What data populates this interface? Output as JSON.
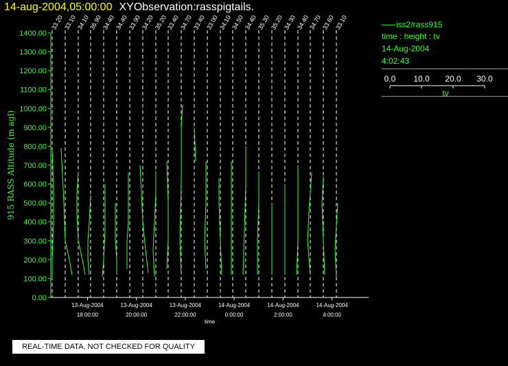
{
  "header": {
    "datetime": "14-aug-2004,05:00:00",
    "title": "XYObservation:rasspigtails."
  },
  "legend": {
    "series": "iss2/rass915",
    "variables": "time : height : tv",
    "date": "14-Aug-2004",
    "time": "4:02:43",
    "scale_ticks": [
      "0.0",
      "10.0",
      "20.0",
      "30.0"
    ],
    "scale_label": "tv"
  },
  "notice": "REAL-TIME DATA, NOT CHECKED FOR QUALITY",
  "chart_data": {
    "type": "line",
    "title": "",
    "ylabel": "915 RASS Altitude (m agl)",
    "xlabel": "time",
    "ylim": [
      0,
      1400
    ],
    "xlim_hours": [
      16.5,
      5.5
    ],
    "grid": false,
    "colors": {
      "data": "#33ff33",
      "axes": "#ffffff",
      "guides": "#ffffff",
      "title_date": "#ffff00"
    },
    "y_ticks": [
      "0.00",
      "100.00",
      "200.00",
      "300.00",
      "400.00",
      "500.00",
      "600.00",
      "700.00",
      "800.00",
      "900.00",
      "1000.00",
      "1100.00",
      "1200.00",
      "1300.00",
      "1400.00"
    ],
    "x_ticks": [
      {
        "date": "13-Aug-2004",
        "time": "18:00:00"
      },
      {
        "date": "13-Aug-2004",
        "time": "20:00:00"
      },
      {
        "date": "13-Aug-2004",
        "time": "22:00:00"
      },
      {
        "date": "14-Aug-2004",
        "time": "0:00:00"
      },
      {
        "date": "14-Aug-2004",
        "time": "2:00:00"
      },
      {
        "date": "14-Aug-2004",
        "time": "4:00:00"
      }
    ],
    "profile_labels": [
      "33.20",
      "33.10",
      "34.10",
      "36.90",
      "34.40",
      "34.40",
      "33.90",
      "34.20",
      "35.20",
      "33.40",
      "34.70",
      "33.40",
      "33.00",
      "34.10",
      "34.50",
      "34.40",
      "35.30",
      "35.20",
      "34.30",
      "34.40",
      "34.70",
      "33.60",
      "33.10"
    ],
    "profiles": [
      {
        "label": "33.20",
        "points": [
          [
            0,
            100
          ],
          [
            0,
            200
          ],
          [
            1,
            400
          ],
          [
            1,
            600
          ],
          [
            0,
            780
          ]
        ]
      },
      {
        "label": "33.10",
        "points": [
          [
            5,
            120
          ],
          [
            3,
            200
          ],
          [
            0,
            300
          ],
          [
            -1,
            500
          ],
          [
            -2,
            650
          ],
          [
            -3,
            790
          ]
        ]
      },
      {
        "label": "34.10",
        "points": [
          [
            5,
            120
          ],
          [
            3,
            200
          ],
          [
            0,
            300
          ],
          [
            -1,
            450
          ],
          [
            -1,
            550
          ],
          [
            0,
            660
          ]
        ]
      },
      {
        "label": "36.90",
        "points": [
          [
            -1,
            120
          ],
          [
            -2,
            200
          ],
          [
            -2,
            300
          ],
          [
            -1,
            400
          ],
          [
            0,
            540
          ]
        ]
      },
      {
        "label": "34.40",
        "points": [
          [
            -1,
            110
          ],
          [
            0,
            200
          ],
          [
            1,
            350
          ],
          [
            1,
            600
          ]
        ]
      },
      {
        "label": "34.40",
        "points": [
          [
            0,
            120
          ],
          [
            0,
            200
          ],
          [
            -1,
            300
          ],
          [
            -1,
            500
          ]
        ]
      },
      {
        "label": "33.90",
        "points": [
          [
            -2,
            150
          ],
          [
            -2,
            300
          ],
          [
            -1,
            400
          ],
          [
            -1,
            660
          ]
        ]
      },
      {
        "label": "34.20",
        "points": [
          [
            4,
            130
          ],
          [
            2,
            250
          ],
          [
            0,
            400
          ],
          [
            -1,
            550
          ],
          [
            -2,
            700
          ]
        ]
      },
      {
        "label": "35.20",
        "points": [
          [
            -1,
            110
          ],
          [
            -2,
            250
          ],
          [
            -1,
            400
          ],
          [
            0,
            550
          ],
          [
            0,
            670
          ]
        ]
      },
      {
        "label": "33.40",
        "points": [
          [
            -1,
            150
          ],
          [
            0,
            300
          ],
          [
            0,
            500
          ],
          [
            -1,
            720
          ]
        ]
      },
      {
        "label": "34.70",
        "points": [
          [
            0,
            120
          ],
          [
            -1,
            300
          ],
          [
            0,
            600
          ],
          [
            0,
            900
          ],
          [
            1,
            1020
          ]
        ]
      },
      {
        "label": "33.40",
        "points": [
          [
            0,
            900
          ],
          [
            1,
            720
          ]
        ]
      },
      {
        "label": "33.00",
        "points": [
          [
            -1,
            150
          ],
          [
            -2,
            300
          ],
          [
            -1,
            500
          ],
          [
            -1,
            720
          ]
        ]
      },
      {
        "label": "34.10",
        "points": [
          [
            1,
            120
          ],
          [
            0,
            300
          ],
          [
            -1,
            500
          ],
          [
            -1,
            630
          ]
        ]
      },
      {
        "label": "34.50",
        "points": [
          [
            -1,
            120
          ],
          [
            -1,
            720
          ]
        ]
      },
      {
        "label": "34.40",
        "points": [
          [
            -2,
            120
          ],
          [
            -1,
            350
          ],
          [
            0,
            600
          ],
          [
            0,
            800
          ]
        ]
      },
      {
        "label": "35.30",
        "points": [
          [
            -1,
            120
          ],
          [
            -1,
            300
          ],
          [
            0,
            500
          ],
          [
            0,
            660
          ]
        ]
      },
      {
        "label": "35.20",
        "points": [
          [
            0,
            120
          ],
          [
            0,
            300
          ],
          [
            0,
            500
          ]
        ]
      },
      {
        "label": "34.30",
        "points": [
          [
            0,
            120
          ],
          [
            0,
            300
          ],
          [
            0,
            500
          ],
          [
            0,
            600
          ]
        ]
      },
      {
        "label": "34.40",
        "points": [
          [
            -1,
            120
          ],
          [
            0,
            300
          ],
          [
            0,
            550
          ],
          [
            0,
            700
          ]
        ]
      },
      {
        "label": "34.70",
        "points": [
          [
            0,
            120
          ],
          [
            -2,
            300
          ],
          [
            -1,
            450
          ],
          [
            1,
            660
          ]
        ]
      },
      {
        "label": "33.60",
        "points": [
          [
            1,
            120
          ],
          [
            0,
            300
          ],
          [
            -1,
            500
          ],
          [
            0,
            640
          ]
        ]
      },
      {
        "label": "33.10",
        "points": [
          [
            0,
            110
          ],
          [
            -1,
            250
          ],
          [
            0,
            380
          ],
          [
            1,
            500
          ]
        ]
      }
    ]
  }
}
